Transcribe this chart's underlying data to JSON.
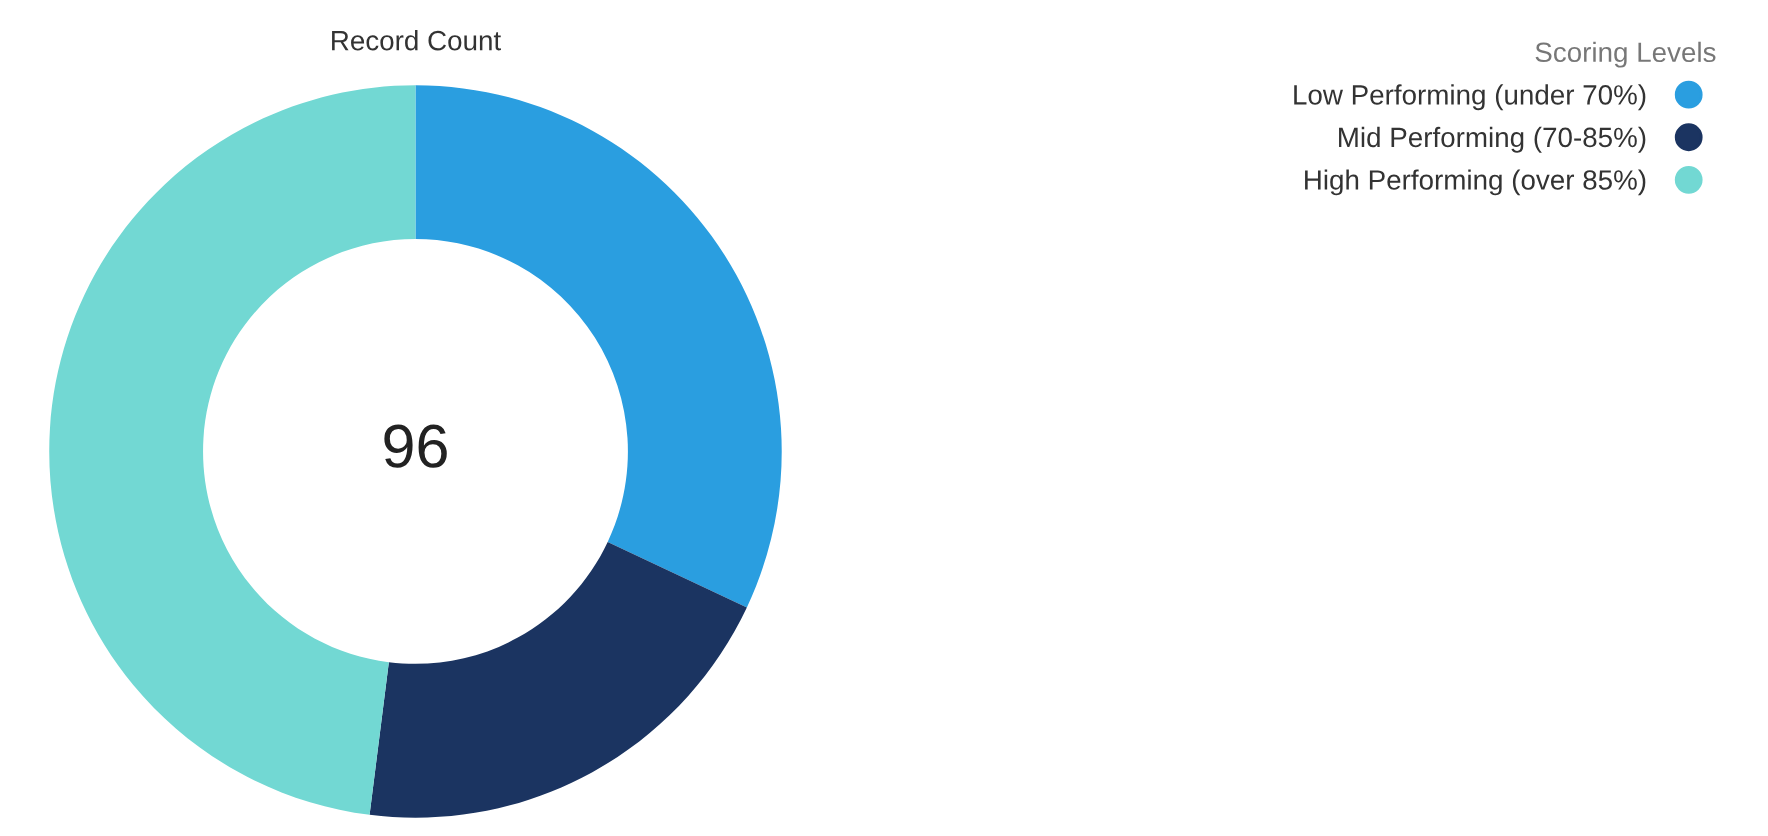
{
  "chart_data": {
    "type": "donut",
    "title": "Record Count",
    "annotations": [
      "96"
    ],
    "legend_title": "Scoring Levels",
    "legend": "top right",
    "categories": [
      "Low Performing (under 70%)",
      "Mid Performing (70-85%)",
      "High Performing (over 85%)"
    ],
    "values": [
      32,
      20,
      48
    ],
    "colors": [
      "#2a9ee0",
      "#1b3461",
      "#72d8d3"
    ]
  }
}
